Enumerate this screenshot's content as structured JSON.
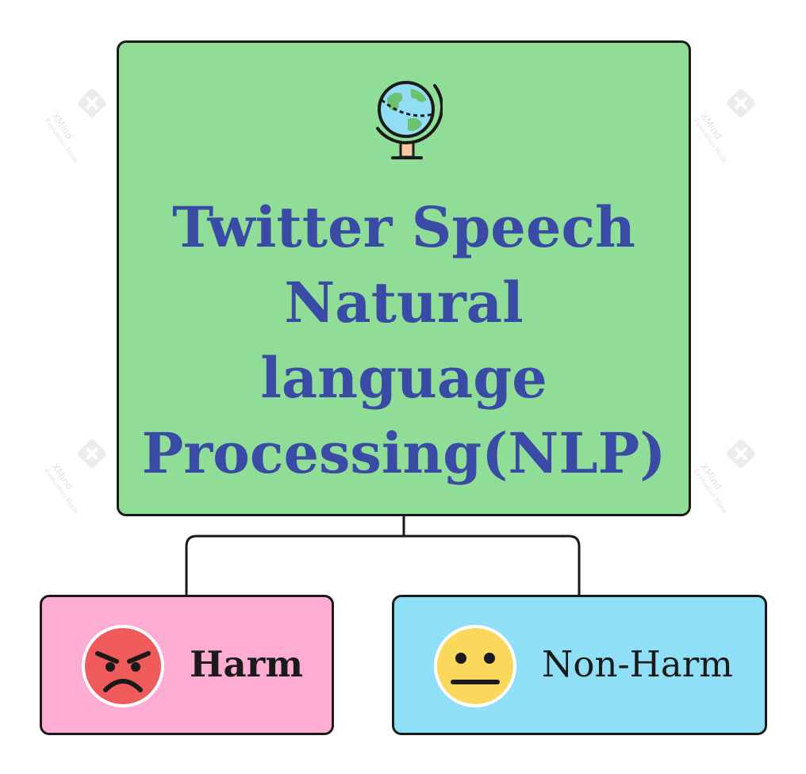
{
  "root": {
    "title": "Twitter Speech\nNatural\nlanguage\nProcessing(NLP)",
    "icon": "globe-icon",
    "fill": "#8fdd97",
    "text_color": "#3a4ba6"
  },
  "children": [
    {
      "label": "Harm",
      "icon": "angry-face-icon",
      "fill": "#ffacd3"
    },
    {
      "label": "Non-Harm",
      "icon": "neutral-face-icon",
      "fill": "#8fdff6"
    }
  ],
  "watermark": {
    "brand": "XMind",
    "caption": "Evaluation Mode"
  }
}
